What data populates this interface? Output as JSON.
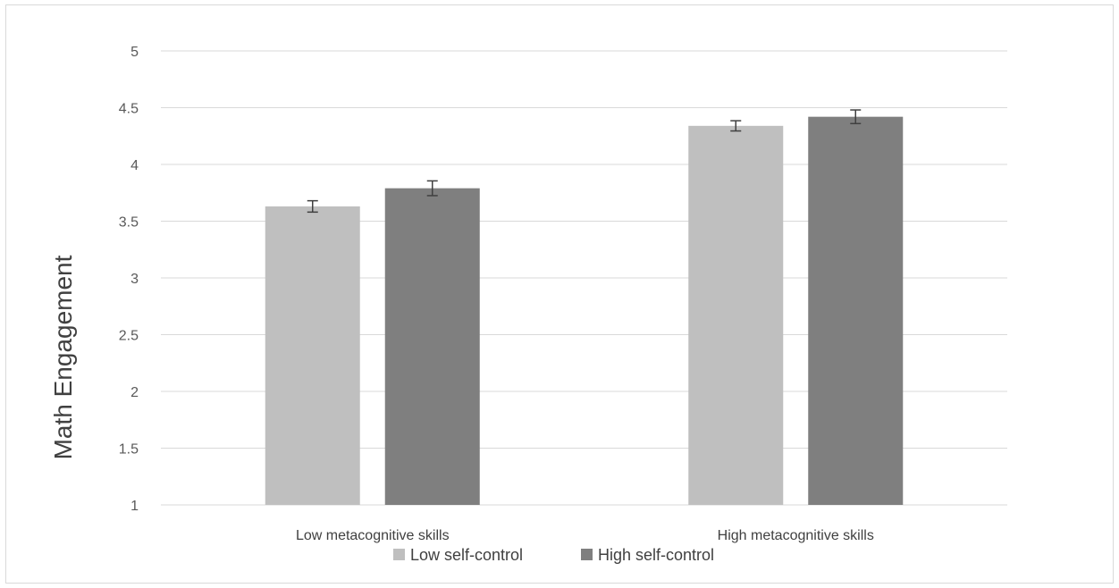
{
  "chart_data": {
    "type": "bar",
    "title": "",
    "xlabel": "",
    "ylabel": "Math Engagement",
    "ylim": [
      1,
      5
    ],
    "yticks": [
      1,
      1.5,
      2,
      2.5,
      3,
      3.5,
      4,
      4.5,
      5
    ],
    "ytick_labels": [
      "1",
      "1.5",
      "2",
      "2.5",
      "3",
      "3.5",
      "4",
      "4.5",
      "5"
    ],
    "grid": true,
    "legend_position": "bottom",
    "categories": [
      "Low metacognitive skills",
      "High metacognitive skills"
    ],
    "series": [
      {
        "name": "Low self-control",
        "color": "#bfbfbf",
        "values": [
          3.63,
          4.34
        ],
        "error": [
          0.05,
          0.045
        ]
      },
      {
        "name": "High self-control",
        "color": "#7f7f7f",
        "values": [
          3.79,
          4.42
        ],
        "error": [
          0.065,
          0.06
        ]
      }
    ]
  }
}
